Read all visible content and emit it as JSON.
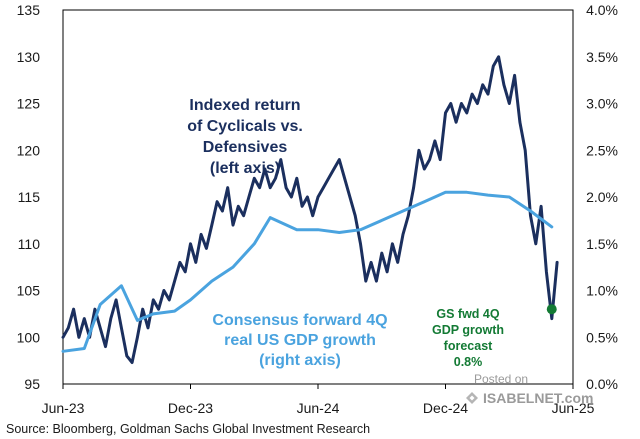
{
  "chart_data": {
    "type": "line",
    "x_tick_labels": [
      "Jun-23",
      "Dec-23",
      "Jun-24",
      "Dec-24",
      "Jun-25"
    ],
    "left_axis": {
      "ylim": [
        95,
        135
      ],
      "ticks": [
        "95",
        "100",
        "105",
        "110",
        "115",
        "120",
        "125",
        "130",
        "135"
      ]
    },
    "right_axis": {
      "ylim": [
        0.0,
        4.0
      ],
      "ticks": [
        "0.0%",
        "0.5%",
        "1.0%",
        "1.5%",
        "2.0%",
        "2.5%",
        "3.0%",
        "3.5%",
        "4.0%"
      ]
    },
    "series": [
      {
        "name": "Indexed return of Cyclicals vs. Defensives",
        "axis": "left",
        "color": "#1b2f5e",
        "x": [
          0.0,
          0.25,
          0.5,
          0.75,
          1.0,
          1.25,
          1.5,
          1.75,
          2.0,
          2.25,
          2.5,
          2.75,
          3.0,
          3.25,
          3.5,
          3.75,
          4.0,
          4.25,
          4.5,
          4.75,
          5.0,
          5.25,
          5.5,
          5.75,
          6.0,
          6.25,
          6.5,
          6.75,
          7.0,
          7.25,
          7.5,
          7.75,
          8.0,
          8.25,
          8.5,
          8.75,
          9.0,
          9.25,
          9.5,
          9.75,
          10.0,
          10.25,
          10.5,
          10.75,
          11.0,
          11.25,
          11.5,
          11.75,
          12.0,
          12.25,
          12.5,
          12.75,
          13.0,
          13.25,
          13.5,
          13.75,
          14.0,
          14.25,
          14.5,
          14.75,
          15.0,
          15.25,
          15.5,
          15.75,
          16.0,
          16.25,
          16.5,
          16.75,
          17.0,
          17.25,
          17.5,
          17.75,
          18.0,
          18.25,
          18.5,
          18.75,
          19.0,
          19.25,
          19.5,
          19.75,
          20.0,
          20.25,
          20.5,
          20.75,
          21.0,
          21.25,
          21.5,
          21.75,
          22.0,
          22.25,
          22.5,
          22.75,
          23.0,
          23.25
        ],
        "y": [
          100,
          101,
          103,
          100,
          102,
          100,
          103,
          101,
          99,
          102,
          104,
          101,
          98,
          97.3,
          100,
          103,
          101,
          104,
          103,
          105,
          104,
          106,
          108,
          107,
          110,
          108,
          111,
          109.5,
          112,
          114.5,
          113.5,
          116,
          112,
          114,
          113,
          115,
          117,
          116,
          118,
          116,
          117,
          119,
          116,
          115,
          117,
          114,
          115,
          113,
          115,
          116,
          117,
          118,
          119,
          117,
          115,
          113,
          110,
          106,
          108,
          106,
          109,
          107,
          110,
          108,
          111,
          113,
          116,
          120,
          118,
          119,
          121,
          119,
          124,
          125,
          123,
          125,
          124,
          126,
          125,
          127,
          126,
          129,
          130,
          127,
          125,
          128,
          123,
          120,
          113,
          110,
          114,
          107,
          102,
          108
        ]
      },
      {
        "name": "Consensus forward 4Q real US GDP growth",
        "axis": "right",
        "color": "#4aa3df",
        "x": [
          0.0,
          1.0,
          1.75,
          2.75,
          3.5,
          4.25,
          5.25,
          6.0,
          7.0,
          8.0,
          9.0,
          9.75,
          11.0,
          12.0,
          13.0,
          14.0,
          15.0,
          16.0,
          17.0,
          18.0,
          19.0,
          20.0,
          21.0,
          22.0,
          23.0
        ],
        "y": [
          0.35,
          0.38,
          0.85,
          1.05,
          0.68,
          0.75,
          0.78,
          0.9,
          1.1,
          1.25,
          1.5,
          1.78,
          1.65,
          1.65,
          1.62,
          1.65,
          1.75,
          1.85,
          1.95,
          2.05,
          2.05,
          2.02,
          2.0,
          1.85,
          1.68
        ]
      },
      {
        "name": "GS fwd 4Q GDP growth forecast",
        "axis": "right",
        "type": "marker",
        "color": "#137a34",
        "x": [
          23.0
        ],
        "y": [
          0.8
        ]
      }
    ],
    "annotations": {
      "cyclicals": [
        "Indexed return",
        "of Cyclicals  vs.",
        "Defensives",
        "(left axis)"
      ],
      "consensus": [
        "Consensus forward 4Q",
        "real US GDP growth",
        "(right axis)"
      ],
      "gs_forecast": [
        "GS fwd 4Q",
        "GDP growth",
        "forecast",
        "0.8%"
      ]
    }
  },
  "source_text": "Source: Bloomberg, Goldman Sachs Global Investment Research",
  "watermark": {
    "posted_on": "Posted on",
    "brand": "ISABELNET.com"
  }
}
